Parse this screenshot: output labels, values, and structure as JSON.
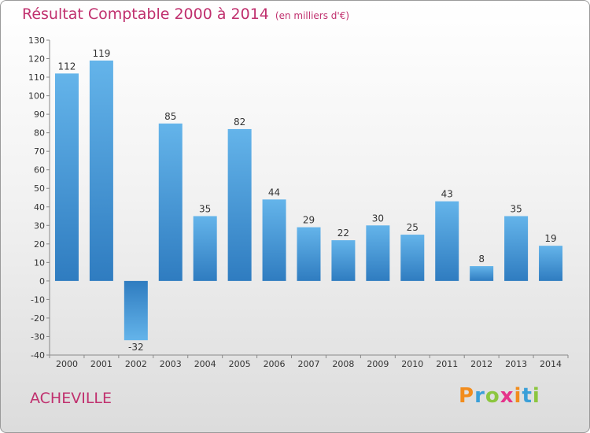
{
  "title": "Résultat Comptable 2000 à 2014",
  "unit": "(en milliers d'€)",
  "city": "ACHEVILLE",
  "brand": {
    "letters": [
      "P",
      "r",
      "o",
      "x",
      "i",
      "t",
      "i"
    ],
    "colors": [
      "#f28c1c",
      "#3a9fd8",
      "#8cc63f",
      "#e5338a",
      "#f28c1c",
      "#3a9fd8",
      "#8cc63f"
    ]
  },
  "colors": {
    "accent": "#c0306e",
    "bar_top": "#64b4ea",
    "bar_bottom": "#2f7cc0"
  },
  "chart_data": {
    "type": "bar",
    "title": "Résultat Comptable 2000 à 2014",
    "subtitle": "(en milliers d'€)",
    "categories": [
      "2000",
      "2001",
      "2002",
      "2003",
      "2004",
      "2005",
      "2006",
      "2007",
      "2008",
      "2009",
      "2010",
      "2011",
      "2012",
      "2013",
      "2014"
    ],
    "values": [
      112,
      119,
      -32,
      85,
      35,
      82,
      44,
      29,
      22,
      30,
      25,
      43,
      8,
      35,
      19
    ],
    "ylim": [
      -40,
      130
    ],
    "yticks": [
      -40,
      -30,
      -20,
      -10,
      0,
      10,
      20,
      30,
      40,
      50,
      60,
      70,
      80,
      90,
      100,
      110,
      120,
      130
    ],
    "grid": false,
    "legend": "none"
  }
}
